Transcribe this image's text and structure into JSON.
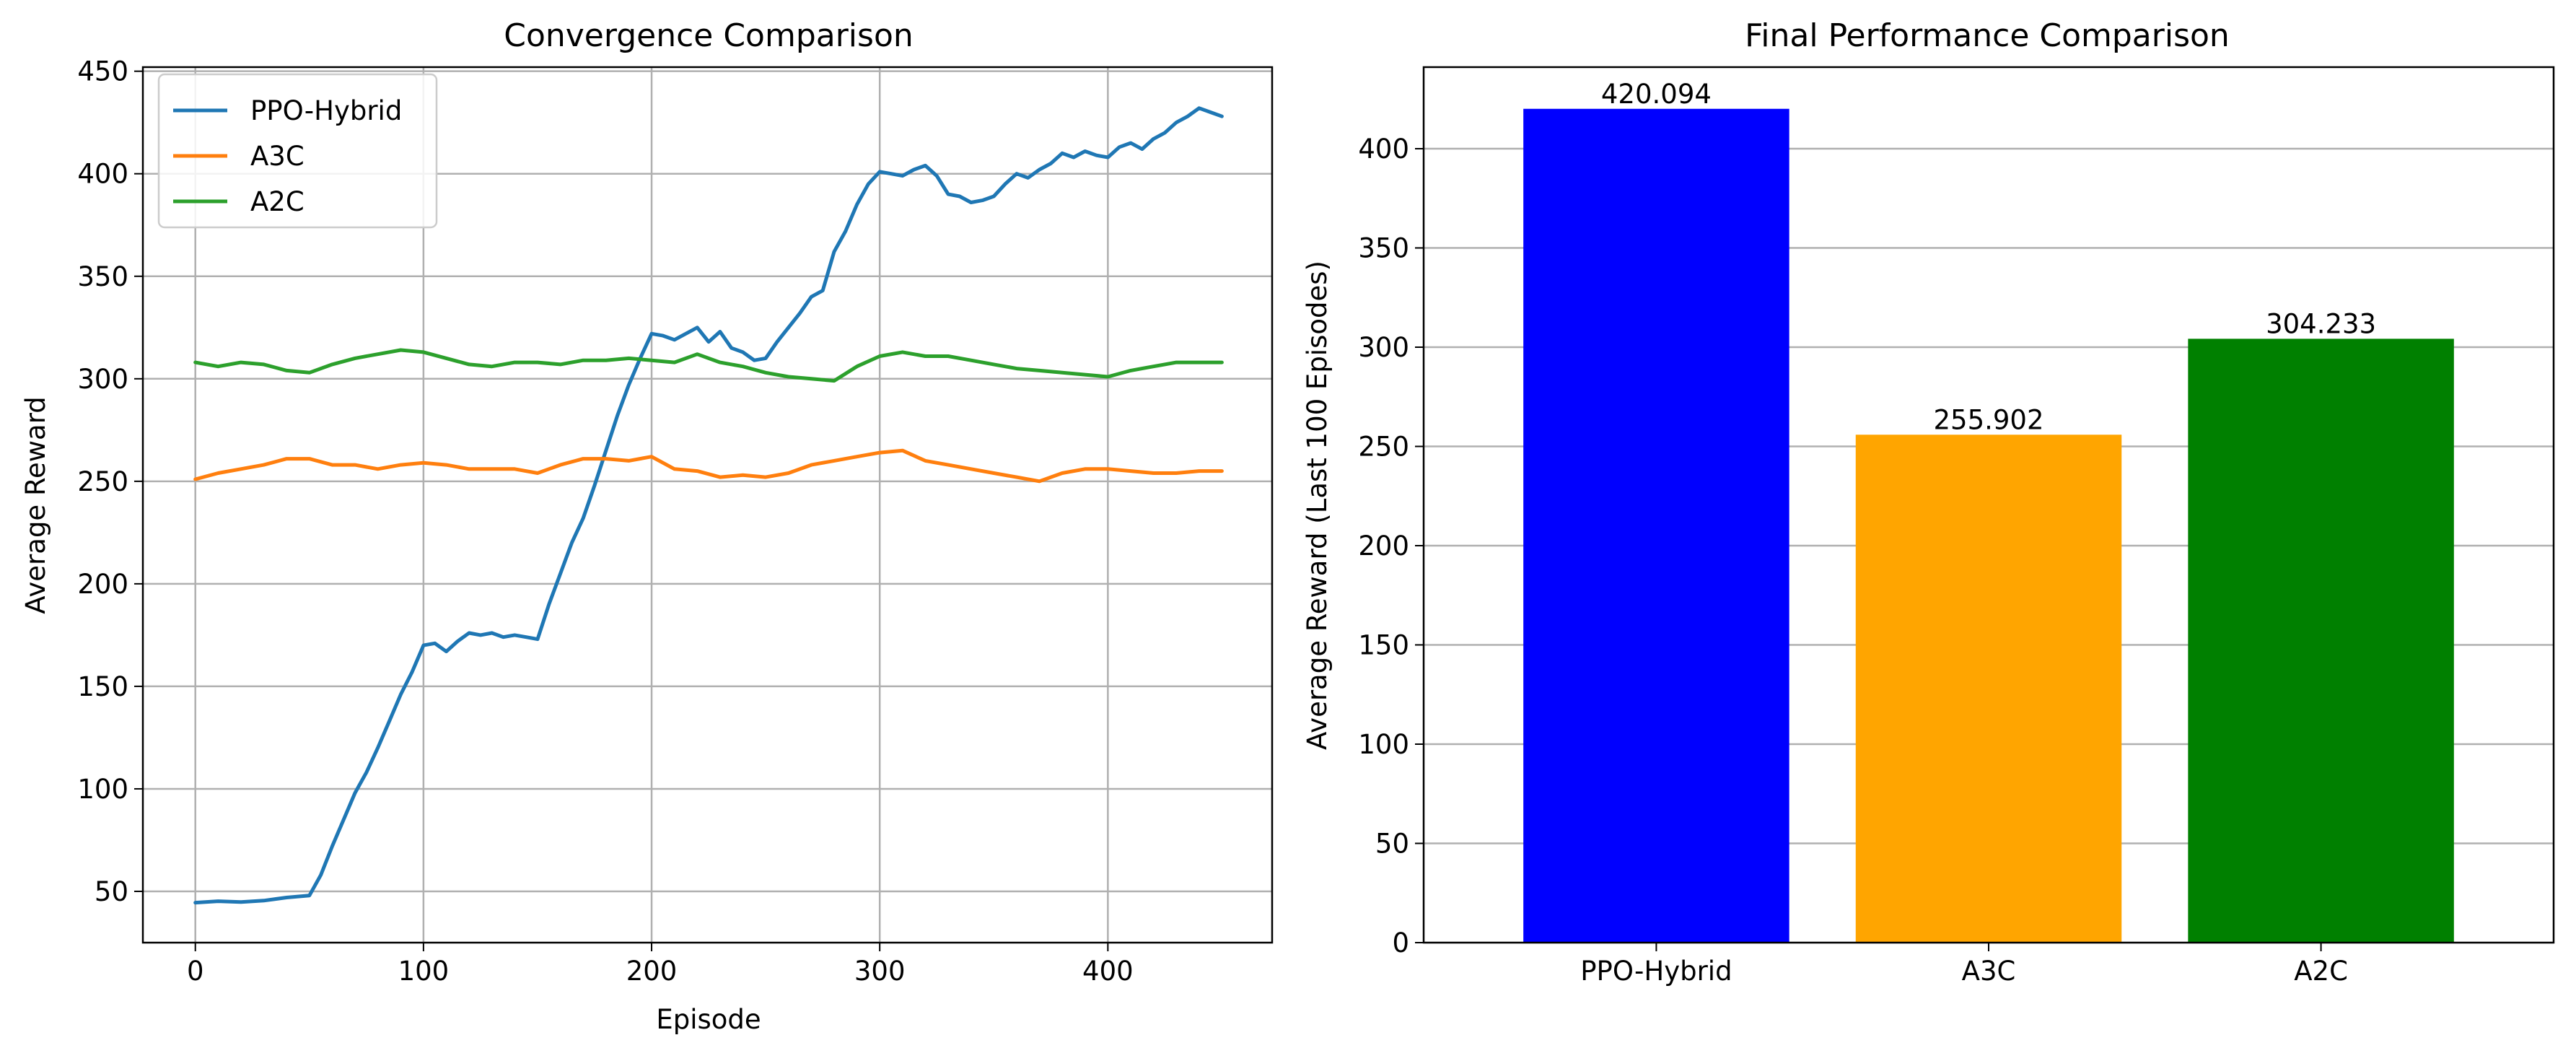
{
  "chart_data": [
    {
      "type": "line",
      "title": "Convergence Comparison",
      "xlabel": "Episode",
      "ylabel": "Average Reward",
      "xlim": [
        -23,
        472
      ],
      "ylim": [
        25,
        452
      ],
      "x_ticks": [
        0,
        100,
        200,
        300,
        400
      ],
      "y_ticks": [
        50,
        100,
        150,
        200,
        250,
        300,
        350,
        400,
        450
      ],
      "grid": true,
      "legend_position": "upper-left",
      "series": [
        {
          "name": "PPO-Hybrid",
          "color": "#1f77b4",
          "points": [
            [
              0,
              44.5
            ],
            [
              10,
              45.2
            ],
            [
              20,
              44.8
            ],
            [
              30,
              45.5
            ],
            [
              40,
              47
            ],
            [
              50,
              48
            ],
            [
              55,
              58
            ],
            [
              60,
              72
            ],
            [
              65,
              85
            ],
            [
              70,
              98
            ],
            [
              75,
              108
            ],
            [
              80,
              120
            ],
            [
              85,
              133
            ],
            [
              90,
              146
            ],
            [
              95,
              157
            ],
            [
              100,
              170
            ],
            [
              105,
              171
            ],
            [
              110,
              167
            ],
            [
              115,
              172
            ],
            [
              120,
              176
            ],
            [
              125,
              175
            ],
            [
              130,
              176
            ],
            [
              135,
              174
            ],
            [
              140,
              175
            ],
            [
              145,
              174
            ],
            [
              150,
              173
            ],
            [
              155,
              190
            ],
            [
              160,
              205
            ],
            [
              165,
              220
            ],
            [
              170,
              232
            ],
            [
              175,
              248
            ],
            [
              180,
              265
            ],
            [
              185,
              282
            ],
            [
              190,
              297
            ],
            [
              195,
              310
            ],
            [
              200,
              322
            ],
            [
              205,
              321
            ],
            [
              210,
              319
            ],
            [
              215,
              322
            ],
            [
              220,
              325
            ],
            [
              225,
              318
            ],
            [
              230,
              323
            ],
            [
              235,
              315
            ],
            [
              240,
              313
            ],
            [
              245,
              309
            ],
            [
              250,
              310
            ],
            [
              255,
              318
            ],
            [
              260,
              325
            ],
            [
              265,
              332
            ],
            [
              270,
              340
            ],
            [
              275,
              343
            ],
            [
              280,
              362
            ],
            [
              285,
              372
            ],
            [
              290,
              385
            ],
            [
              295,
              395
            ],
            [
              300,
              401
            ],
            [
              305,
              400
            ],
            [
              310,
              399
            ],
            [
              315,
              402
            ],
            [
              320,
              404
            ],
            [
              325,
              399
            ],
            [
              330,
              390
            ],
            [
              335,
              389
            ],
            [
              340,
              386
            ],
            [
              345,
              387
            ],
            [
              350,
              389
            ],
            [
              355,
              395
            ],
            [
              360,
              400
            ],
            [
              365,
              398
            ],
            [
              370,
              402
            ],
            [
              375,
              405
            ],
            [
              380,
              410
            ],
            [
              385,
              408
            ],
            [
              390,
              411
            ],
            [
              395,
              409
            ],
            [
              400,
              408
            ],
            [
              405,
              413
            ],
            [
              410,
              415
            ],
            [
              415,
              412
            ],
            [
              420,
              417
            ],
            [
              425,
              420
            ],
            [
              430,
              425
            ],
            [
              435,
              428
            ],
            [
              440,
              432
            ],
            [
              445,
              430
            ],
            [
              450,
              428
            ]
          ]
        },
        {
          "name": "A3C",
          "color": "#ff7f0e",
          "points": [
            [
              0,
              251
            ],
            [
              10,
              254
            ],
            [
              20,
              256
            ],
            [
              30,
              258
            ],
            [
              40,
              261
            ],
            [
              50,
              261
            ],
            [
              60,
              258
            ],
            [
              70,
              258
            ],
            [
              80,
              256
            ],
            [
              90,
              258
            ],
            [
              100,
              259
            ],
            [
              110,
              258
            ],
            [
              120,
              256
            ],
            [
              130,
              256
            ],
            [
              140,
              256
            ],
            [
              150,
              254
            ],
            [
              160,
              258
            ],
            [
              170,
              261
            ],
            [
              180,
              261
            ],
            [
              190,
              260
            ],
            [
              200,
              262
            ],
            [
              210,
              256
            ],
            [
              220,
              255
            ],
            [
              230,
              252
            ],
            [
              240,
              253
            ],
            [
              250,
              252
            ],
            [
              260,
              254
            ],
            [
              270,
              258
            ],
            [
              280,
              260
            ],
            [
              290,
              262
            ],
            [
              300,
              264
            ],
            [
              310,
              265
            ],
            [
              320,
              260
            ],
            [
              330,
              258
            ],
            [
              340,
              256
            ],
            [
              350,
              254
            ],
            [
              360,
              252
            ],
            [
              370,
              250
            ],
            [
              380,
              254
            ],
            [
              390,
              256
            ],
            [
              400,
              256
            ],
            [
              410,
              255
            ],
            [
              420,
              254
            ],
            [
              430,
              254
            ],
            [
              440,
              255
            ],
            [
              450,
              255
            ]
          ]
        },
        {
          "name": "A2C",
          "color": "#2ca02c",
          "points": [
            [
              0,
              308
            ],
            [
              10,
              306
            ],
            [
              20,
              308
            ],
            [
              30,
              307
            ],
            [
              40,
              304
            ],
            [
              50,
              303
            ],
            [
              60,
              307
            ],
            [
              70,
              310
            ],
            [
              80,
              312
            ],
            [
              90,
              314
            ],
            [
              100,
              313
            ],
            [
              110,
              310
            ],
            [
              120,
              307
            ],
            [
              130,
              306
            ],
            [
              140,
              308
            ],
            [
              150,
              308
            ],
            [
              160,
              307
            ],
            [
              170,
              309
            ],
            [
              180,
              309
            ],
            [
              190,
              310
            ],
            [
              200,
              309
            ],
            [
              210,
              308
            ],
            [
              220,
              312
            ],
            [
              230,
              308
            ],
            [
              240,
              306
            ],
            [
              250,
              303
            ],
            [
              260,
              301
            ],
            [
              270,
              300
            ],
            [
              280,
              299
            ],
            [
              290,
              306
            ],
            [
              300,
              311
            ],
            [
              310,
              313
            ],
            [
              320,
              311
            ],
            [
              330,
              311
            ],
            [
              340,
              309
            ],
            [
              350,
              307
            ],
            [
              360,
              305
            ],
            [
              370,
              304
            ],
            [
              380,
              303
            ],
            [
              390,
              302
            ],
            [
              400,
              301
            ],
            [
              410,
              304
            ],
            [
              420,
              306
            ],
            [
              430,
              308
            ],
            [
              440,
              308
            ],
            [
              450,
              308
            ]
          ]
        }
      ]
    },
    {
      "type": "bar",
      "title": "Final Performance Comparison",
      "xlabel": "",
      "ylabel": "Average Reward (Last 100 Episodes)",
      "categories": [
        "PPO-Hybrid",
        "A3C",
        "A2C"
      ],
      "values": [
        420.094,
        255.902,
        304.233
      ],
      "value_labels": [
        "420.094",
        "255.902",
        "304.233"
      ],
      "colors": [
        "#0000ff",
        "#ffa500",
        "#008000"
      ],
      "ylim": [
        0,
        441.1
      ],
      "y_ticks": [
        0,
        50,
        100,
        150,
        200,
        250,
        300,
        350,
        400
      ],
      "grid": "y"
    }
  ]
}
